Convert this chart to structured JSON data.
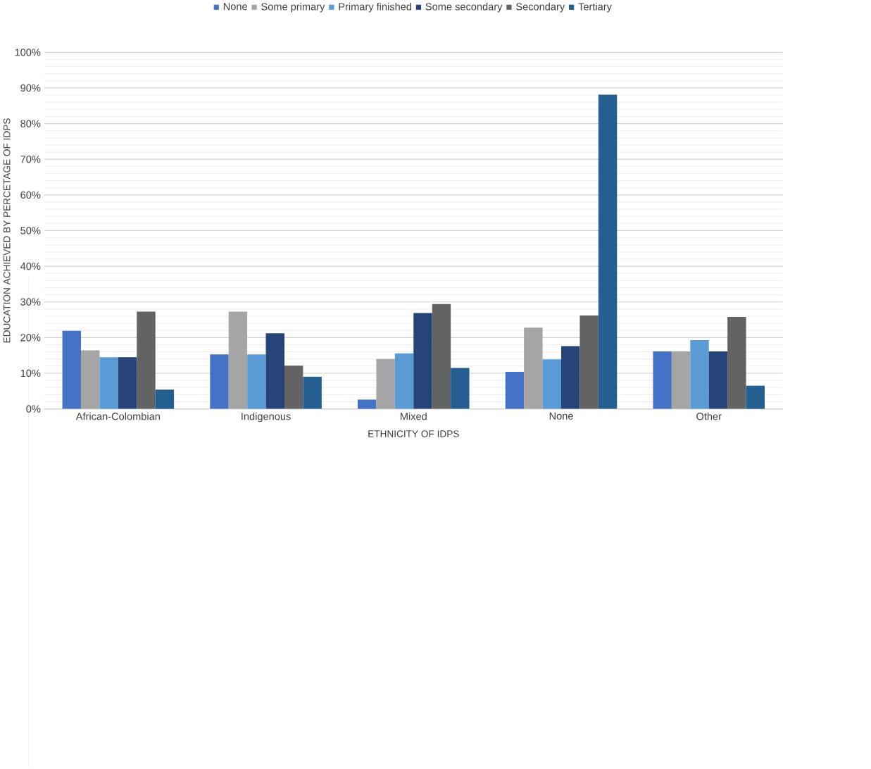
{
  "chart_data": {
    "type": "bar",
    "xlabel": "ETHNICITY OF IDPS",
    "ylabel": "EDUCATION ACHIEVED BY PERCETAGE OF IDPS",
    "categories": [
      "African-Colombian",
      "Indigenous",
      "Mixed",
      "None",
      "Other"
    ],
    "series": [
      {
        "name": "None",
        "color": "#4472c4",
        "values": [
          21.9,
          15.3,
          2.6,
          10.4,
          16.1
        ]
      },
      {
        "name": "Some primary",
        "color": "#a5a5a5",
        "values": [
          16.4,
          27.3,
          14.0,
          22.8,
          16.1
        ]
      },
      {
        "name": "Primary finished",
        "color": "#5b9bd5",
        "values": [
          14.5,
          15.3,
          15.6,
          13.9,
          19.3
        ]
      },
      {
        "name": "Some secondary",
        "color": "#264478",
        "values": [
          14.5,
          21.2,
          26.9,
          17.6,
          16.1
        ]
      },
      {
        "name": "Secondary",
        "color": "#636363",
        "values": [
          27.3,
          12.1,
          29.4,
          26.2,
          25.8
        ]
      },
      {
        "name": "Tertiary",
        "color": "#255e91",
        "values": [
          5.4,
          9.0,
          11.5,
          88.1,
          6.5
        ]
      }
    ],
    "ylim": [
      0,
      100
    ],
    "yticks": [
      {
        "value": 0,
        "label": "0%"
      },
      {
        "value": 10,
        "label": "10%"
      },
      {
        "value": 20,
        "label": "20%"
      },
      {
        "value": 30,
        "label": "30%"
      },
      {
        "value": 40,
        "label": "40%"
      },
      {
        "value": 50,
        "label": "50%"
      },
      {
        "value": 60,
        "label": "60%"
      },
      {
        "value": 70,
        "label": "70%"
      },
      {
        "value": 80,
        "label": "80%"
      },
      {
        "value": 90,
        "label": "90%"
      },
      {
        "value": 100,
        "label": "100%"
      }
    ],
    "grid": "y",
    "legend": "top"
  }
}
